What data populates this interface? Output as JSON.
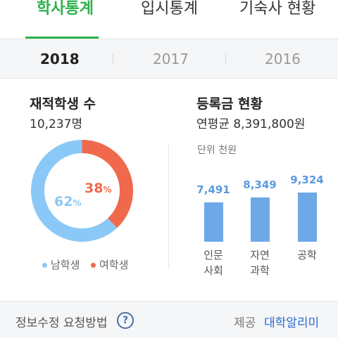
{
  "top_tabs": [
    {
      "label": "학사통계",
      "active": true
    },
    {
      "label": "입시통계",
      "active": false
    },
    {
      "label": "기숙사 현황",
      "active": false
    }
  ],
  "years": [
    {
      "label": "2018",
      "active": true
    },
    {
      "label": "2017",
      "active": false
    },
    {
      "label": "2016",
      "active": false
    }
  ],
  "students": {
    "title": "재적학생 수",
    "value": "10,237명",
    "male_pct": "62",
    "female_pct": "38",
    "pct_unit": "%",
    "legend": [
      "남학생",
      "여학생"
    ],
    "colors": {
      "male": "#8ac8f7",
      "female": "#f0694c"
    }
  },
  "tuition": {
    "title": "등록금 현황",
    "value": "연평균 8,391,800원",
    "unit_label": "단위 천원"
  },
  "chart_data": {
    "type": "bar",
    "categories": [
      "인문\n사회",
      "자연\n과학",
      "공학"
    ],
    "values": [
      7491,
      8349,
      9324
    ],
    "value_labels": [
      "7,491",
      "8,349",
      "9,324"
    ],
    "ylabel": "단위 천원",
    "bar_color": "#6fa8e6"
  },
  "footer": {
    "info_link": "정보수정 요청방법",
    "help_icon": "question-circle-icon",
    "provider_label": "제공",
    "provider_name": "대학알리미"
  },
  "colors": {
    "accent": "#2db14a",
    "link": "#2a6ad3"
  }
}
